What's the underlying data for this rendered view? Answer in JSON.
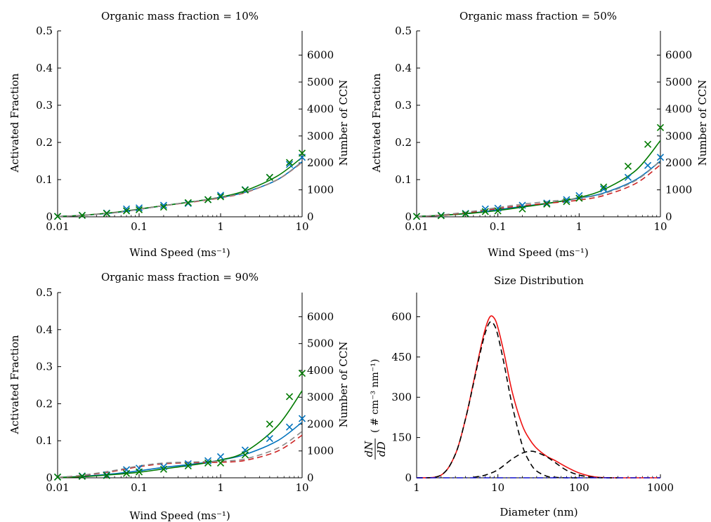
{
  "chart_data": [
    {
      "id": "p10",
      "type": "line",
      "title": "Organic mass fraction = 10%",
      "xlabel": "Wind Speed (ms⁻¹)",
      "ylabel": "Activated Fraction",
      "y2label": "Number of CCN",
      "x_scale": "log",
      "xlim": [
        0.01,
        10
      ],
      "ylim": [
        0,
        0.5
      ],
      "y2lim": [
        0,
        6900
      ],
      "xticks": [
        {
          "v": 0.01,
          "label": "0.01"
        },
        {
          "v": 0.1,
          "label": "0.1"
        },
        {
          "v": 1,
          "label": "1"
        },
        {
          "v": 10,
          "label": "10"
        }
      ],
      "yticks": [
        {
          "v": 0,
          "label": "0"
        },
        {
          "v": 0.1,
          "label": "0.1"
        },
        {
          "v": 0.2,
          "label": "0.2"
        },
        {
          "v": 0.3,
          "label": "0.3"
        },
        {
          "v": 0.4,
          "label": "0.4"
        },
        {
          "v": 0.5,
          "label": "0.5"
        }
      ],
      "y2ticks": [
        {
          "v": 0,
          "label": "0"
        },
        {
          "v": 1000,
          "label": "1000"
        },
        {
          "v": 2000,
          "label": "2000"
        },
        {
          "v": 3000,
          "label": "3000"
        },
        {
          "v": 4000,
          "label": "4000"
        },
        {
          "v": 5000,
          "label": "5000"
        },
        {
          "v": 6000,
          "label": "6000"
        }
      ],
      "grid": false,
      "series": [
        {
          "style": "solid",
          "color": "#0072bd",
          "x": [
            0.01,
            0.02,
            0.05,
            0.1,
            0.2,
            0.5,
            1,
            2,
            5,
            10
          ],
          "y": [
            0.001,
            0.004,
            0.011,
            0.02,
            0.03,
            0.042,
            0.052,
            0.066,
            0.1,
            0.148
          ]
        },
        {
          "style": "solid",
          "color": "#007a00",
          "x": [
            0.01,
            0.02,
            0.05,
            0.1,
            0.2,
            0.5,
            1,
            2,
            5,
            10
          ],
          "y": [
            0.001,
            0.004,
            0.012,
            0.021,
            0.03,
            0.042,
            0.053,
            0.07,
            0.11,
            0.16
          ]
        },
        {
          "style": "dashed",
          "color": "#cc2222",
          "x": [
            0.01,
            0.02,
            0.05,
            0.1,
            0.2,
            0.5,
            1,
            2,
            5,
            10
          ],
          "y": [
            0.001,
            0.004,
            0.011,
            0.02,
            0.03,
            0.041,
            0.051,
            0.065,
            0.1,
            0.146
          ]
        },
        {
          "style": "dashed",
          "color": "#8c8c8c",
          "x": [
            0.01,
            0.02,
            0.05,
            0.1,
            0.2,
            0.5,
            1,
            2,
            5,
            10
          ],
          "y": [
            0.001,
            0.004,
            0.011,
            0.02,
            0.03,
            0.042,
            0.052,
            0.066,
            0.1,
            0.147
          ]
        },
        {
          "style": "x",
          "color": "#0072bd",
          "x": [
            0.01,
            0.02,
            0.04,
            0.07,
            0.1,
            0.2,
            0.4,
            0.7,
            1,
            2,
            4,
            7,
            10
          ],
          "y": [
            0.001,
            0.004,
            0.01,
            0.021,
            0.024,
            0.031,
            0.036,
            0.046,
            0.058,
            0.073,
            0.106,
            0.141,
            0.16
          ]
        },
        {
          "style": "x",
          "color": "#007a00",
          "x": [
            0.01,
            0.02,
            0.04,
            0.07,
            0.1,
            0.2,
            0.4,
            0.7,
            1,
            2,
            4,
            7,
            10
          ],
          "y": [
            0.001,
            0.004,
            0.009,
            0.016,
            0.019,
            0.026,
            0.038,
            0.046,
            0.054,
            0.072,
            0.106,
            0.146,
            0.171
          ]
        }
      ]
    },
    {
      "id": "p50",
      "type": "line",
      "title": "Organic mass fraction = 50%",
      "xlabel": "Wind Speed (ms⁻¹)",
      "ylabel": "Activated Fraction",
      "y2label": "Number of CCN",
      "x_scale": "log",
      "xlim": [
        0.01,
        10
      ],
      "ylim": [
        0,
        0.5
      ],
      "y2lim": [
        0,
        6900
      ],
      "xticks": [
        {
          "v": 0.01,
          "label": "0.01"
        },
        {
          "v": 0.1,
          "label": "0.1"
        },
        {
          "v": 1,
          "label": "1"
        },
        {
          "v": 10,
          "label": "10"
        }
      ],
      "yticks": [
        {
          "v": 0,
          "label": "0"
        },
        {
          "v": 0.1,
          "label": "0.1"
        },
        {
          "v": 0.2,
          "label": "0.2"
        },
        {
          "v": 0.3,
          "label": "0.3"
        },
        {
          "v": 0.4,
          "label": "0.4"
        },
        {
          "v": 0.5,
          "label": "0.5"
        }
      ],
      "y2ticks": [
        {
          "v": 0,
          "label": "0"
        },
        {
          "v": 1000,
          "label": "1000"
        },
        {
          "v": 2000,
          "label": "2000"
        },
        {
          "v": 3000,
          "label": "3000"
        },
        {
          "v": 4000,
          "label": "4000"
        },
        {
          "v": 5000,
          "label": "5000"
        },
        {
          "v": 6000,
          "label": "6000"
        }
      ],
      "grid": false,
      "series": [
        {
          "style": "solid",
          "color": "#0072bd",
          "x": [
            0.01,
            0.02,
            0.05,
            0.1,
            0.2,
            0.5,
            1,
            2,
            5,
            10
          ],
          "y": [
            0.001,
            0.004,
            0.011,
            0.019,
            0.028,
            0.039,
            0.05,
            0.064,
            0.1,
            0.15
          ]
        },
        {
          "style": "solid",
          "color": "#007a00",
          "x": [
            0.01,
            0.02,
            0.05,
            0.1,
            0.2,
            0.5,
            1,
            2,
            5,
            10
          ],
          "y": [
            0.001,
            0.004,
            0.01,
            0.017,
            0.026,
            0.039,
            0.052,
            0.073,
            0.125,
            0.205
          ]
        },
        {
          "style": "dashed",
          "color": "#cc2222",
          "x": [
            0.01,
            0.02,
            0.05,
            0.1,
            0.2,
            0.5,
            1,
            2,
            5,
            10
          ],
          "y": [
            0.001,
            0.004,
            0.013,
            0.022,
            0.03,
            0.038,
            0.045,
            0.057,
            0.09,
            0.14
          ]
        },
        {
          "style": "dashed",
          "color": "#8c8c8c",
          "x": [
            0.01,
            0.02,
            0.05,
            0.1,
            0.2,
            0.5,
            1,
            2,
            5,
            10
          ],
          "y": [
            0.001,
            0.005,
            0.015,
            0.025,
            0.034,
            0.043,
            0.05,
            0.062,
            0.098,
            0.15
          ]
        },
        {
          "style": "x",
          "color": "#0072bd",
          "x": [
            0.01,
            0.02,
            0.04,
            0.07,
            0.1,
            0.2,
            0.4,
            0.7,
            1,
            2,
            4,
            7,
            10
          ],
          "y": [
            0.001,
            0.004,
            0.009,
            0.021,
            0.023,
            0.031,
            0.037,
            0.046,
            0.057,
            0.075,
            0.106,
            0.138,
            0.16
          ]
        },
        {
          "style": "x",
          "color": "#007a00",
          "x": [
            0.01,
            0.02,
            0.04,
            0.07,
            0.1,
            0.2,
            0.4,
            0.7,
            1,
            2,
            4,
            7,
            10
          ],
          "y": [
            0.001,
            0.003,
            0.008,
            0.014,
            0.016,
            0.021,
            0.034,
            0.041,
            0.05,
            0.08,
            0.136,
            0.195,
            0.24
          ]
        }
      ]
    },
    {
      "id": "p90",
      "type": "line",
      "title": "Organic mass fraction = 90%",
      "xlabel": "Wind Speed (ms⁻¹)",
      "ylabel": "Activated Fraction",
      "y2label": "Number of CCN",
      "x_scale": "log",
      "xlim": [
        0.01,
        10
      ],
      "ylim": [
        0,
        0.5
      ],
      "y2lim": [
        0,
        6900
      ],
      "xticks": [
        {
          "v": 0.01,
          "label": "0.01"
        },
        {
          "v": 0.1,
          "label": "0.1"
        },
        {
          "v": 1,
          "label": "1"
        },
        {
          "v": 10,
          "label": "10"
        }
      ],
      "yticks": [
        {
          "v": 0,
          "label": "0"
        },
        {
          "v": 0.1,
          "label": "0.1"
        },
        {
          "v": 0.2,
          "label": "0.2"
        },
        {
          "v": 0.3,
          "label": "0.3"
        },
        {
          "v": 0.4,
          "label": "0.4"
        },
        {
          "v": 0.5,
          "label": "0.5"
        }
      ],
      "y2ticks": [
        {
          "v": 0,
          "label": "0"
        },
        {
          "v": 1000,
          "label": "1000"
        },
        {
          "v": 2000,
          "label": "2000"
        },
        {
          "v": 3000,
          "label": "3000"
        },
        {
          "v": 4000,
          "label": "4000"
        },
        {
          "v": 5000,
          "label": "5000"
        },
        {
          "v": 6000,
          "label": "6000"
        }
      ],
      "grid": false,
      "series": [
        {
          "style": "solid",
          "color": "#0072bd",
          "x": [
            0.01,
            0.02,
            0.05,
            0.1,
            0.2,
            0.5,
            1,
            2,
            5,
            10
          ],
          "y": [
            0.001,
            0.004,
            0.011,
            0.019,
            0.028,
            0.038,
            0.048,
            0.063,
            0.1,
            0.15
          ]
        },
        {
          "style": "solid",
          "color": "#007a00",
          "x": [
            0.01,
            0.02,
            0.05,
            0.1,
            0.2,
            0.5,
            1,
            2,
            5,
            10
          ],
          "y": [
            0.001,
            0.003,
            0.009,
            0.015,
            0.024,
            0.036,
            0.048,
            0.07,
            0.14,
            0.235
          ]
        },
        {
          "style": "dashed",
          "color": "#cc2222",
          "x": [
            0.01,
            0.02,
            0.05,
            0.1,
            0.2,
            0.5,
            1,
            2,
            5,
            10
          ],
          "y": [
            0.001,
            0.006,
            0.018,
            0.03,
            0.038,
            0.041,
            0.042,
            0.047,
            0.072,
            0.115
          ]
        },
        {
          "style": "dashed",
          "color": "#8c8c8c",
          "x": [
            0.01,
            0.02,
            0.05,
            0.1,
            0.2,
            0.5,
            1,
            2,
            5,
            10
          ],
          "y": [
            0.001,
            0.007,
            0.02,
            0.032,
            0.04,
            0.043,
            0.045,
            0.051,
            0.08,
            0.125
          ]
        },
        {
          "style": "x",
          "color": "#0072bd",
          "x": [
            0.01,
            0.02,
            0.04,
            0.07,
            0.1,
            0.2,
            0.4,
            0.7,
            1,
            2,
            4,
            7,
            10
          ],
          "y": [
            0.002,
            0.005,
            0.008,
            0.022,
            0.026,
            0.03,
            0.038,
            0.046,
            0.057,
            0.075,
            0.106,
            0.137,
            0.16
          ]
        },
        {
          "style": "x",
          "color": "#007a00",
          "x": [
            0.01,
            0.02,
            0.04,
            0.07,
            0.1,
            0.2,
            0.4,
            0.7,
            1,
            2,
            4,
            7,
            10
          ],
          "y": [
            0.002,
            0.004,
            0.006,
            0.012,
            0.016,
            0.023,
            0.032,
            0.04,
            0.04,
            0.062,
            0.145,
            0.219,
            0.282
          ]
        }
      ]
    },
    {
      "id": "sd",
      "type": "line",
      "title": "Size Distribution",
      "xlabel": "Diameter (nm)",
      "ylabel": "dN/dD ( # cm⁻³ nm⁻¹)",
      "ylabel_parts": {
        "num": "dN",
        "den": "dD",
        "units": "( # cm⁻³ nm⁻¹)"
      },
      "x_scale": "log",
      "xlim": [
        1,
        1000
      ],
      "ylim": [
        0,
        690
      ],
      "xticks": [
        {
          "v": 1,
          "label": "1"
        },
        {
          "v": 10,
          "label": "10"
        },
        {
          "v": 100,
          "label": "100"
        },
        {
          "v": 1000,
          "label": "1000"
        }
      ],
      "yticks": [
        {
          "v": 0,
          "label": "0"
        },
        {
          "v": 150,
          "label": "150"
        },
        {
          "v": 300,
          "label": "300"
        },
        {
          "v": 450,
          "label": "450"
        },
        {
          "v": 600,
          "label": "600"
        }
      ],
      "grid": false,
      "series": [
        {
          "style": "solid",
          "color": "#ee1111",
          "x": [
            1,
            2,
            3,
            4,
            5,
            6,
            7,
            8,
            9,
            10,
            12,
            15,
            20,
            25,
            30,
            40,
            50,
            70,
            100,
            150,
            200,
            300,
            500,
            1000
          ],
          "y": [
            0,
            10,
            88,
            220,
            355,
            470,
            555,
            600,
            595,
            560,
            460,
            320,
            195,
            140,
            110,
            80,
            65,
            40,
            18,
            4,
            1,
            0,
            0,
            0
          ]
        },
        {
          "style": "dashed",
          "color": "#000000",
          "x": [
            1,
            2,
            3,
            4,
            5,
            6,
            7,
            8,
            9,
            10,
            12,
            15,
            20,
            25,
            30,
            40,
            50,
            70,
            100
          ],
          "y": [
            0,
            10,
            88,
            220,
            350,
            460,
            540,
            580,
            570,
            530,
            420,
            270,
            120,
            55,
            25,
            6,
            2,
            0,
            0
          ]
        },
        {
          "style": "dashed",
          "color": "#000000",
          "x": [
            5,
            7,
            10,
            15,
            20,
            25,
            30,
            40,
            50,
            70,
            100,
            150,
            200,
            300
          ],
          "y": [
            2,
            10,
            30,
            70,
            92,
            99,
            95,
            78,
            58,
            28,
            10,
            2,
            0,
            0
          ]
        },
        {
          "style": "dashdot",
          "color": "#1111cc",
          "x": [
            1,
            10,
            100,
            1000
          ],
          "y": [
            0,
            0,
            0,
            0
          ]
        }
      ]
    }
  ]
}
